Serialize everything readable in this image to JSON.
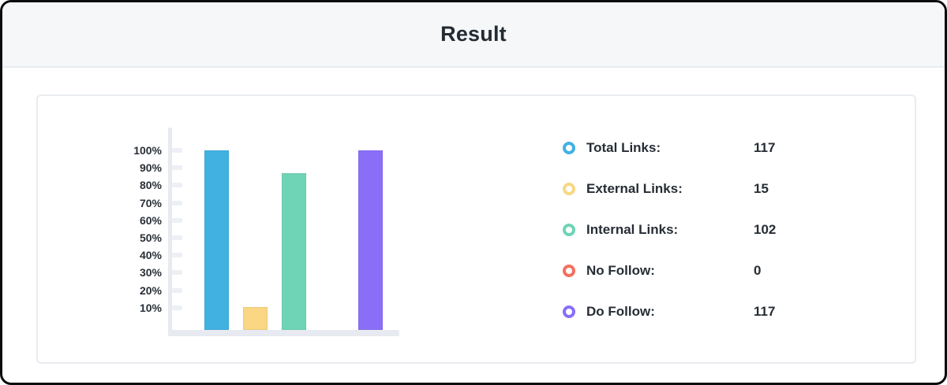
{
  "header": {
    "title": "Result"
  },
  "chart_data": {
    "type": "bar",
    "title": "",
    "categories": [
      "Total Links",
      "External Links",
      "Internal Links",
      "No Follow",
      "Do Follow"
    ],
    "values": [
      117,
      15,
      102,
      0,
      117
    ],
    "percentages": [
      100,
      12.8,
      87.2,
      0,
      100
    ],
    "bar_colors": [
      "#41b1e2",
      "#f9d783",
      "#6fd4b6",
      "#f3705f",
      "#8a6ef8"
    ],
    "yticks": [
      "100%",
      "90%",
      "80%",
      "70%",
      "60%",
      "50%",
      "40%",
      "30%",
      "20%",
      "10%"
    ],
    "ylim": [
      0,
      100
    ],
    "xlabel": "",
    "ylabel": "",
    "grid": false,
    "legend_position": "right"
  },
  "legend": {
    "items": [
      {
        "label": "Total Links:",
        "value": "117",
        "color": "#41b1e2",
        "icon": "ring-icon"
      },
      {
        "label": "External Links:",
        "value": "15",
        "color": "#f9d783",
        "icon": "ring-icon"
      },
      {
        "label": "Internal Links:",
        "value": "102",
        "color": "#6fd4b6",
        "icon": "ring-icon"
      },
      {
        "label": "No Follow:",
        "value": "0",
        "color": "#f3705f",
        "icon": "ring-icon"
      },
      {
        "label": "Do Follow:",
        "value": "117",
        "color": "#8a6ef8",
        "icon": "ring-icon"
      }
    ]
  },
  "colors": {
    "frame_border": "#0b0b0b",
    "header_bg": "#f5f7f9",
    "header_border": "#e8ebef",
    "card_border": "#e8ebf0",
    "axis": "#e7eaf0",
    "tick": "#eceff4",
    "text_dark": "#272d35"
  }
}
